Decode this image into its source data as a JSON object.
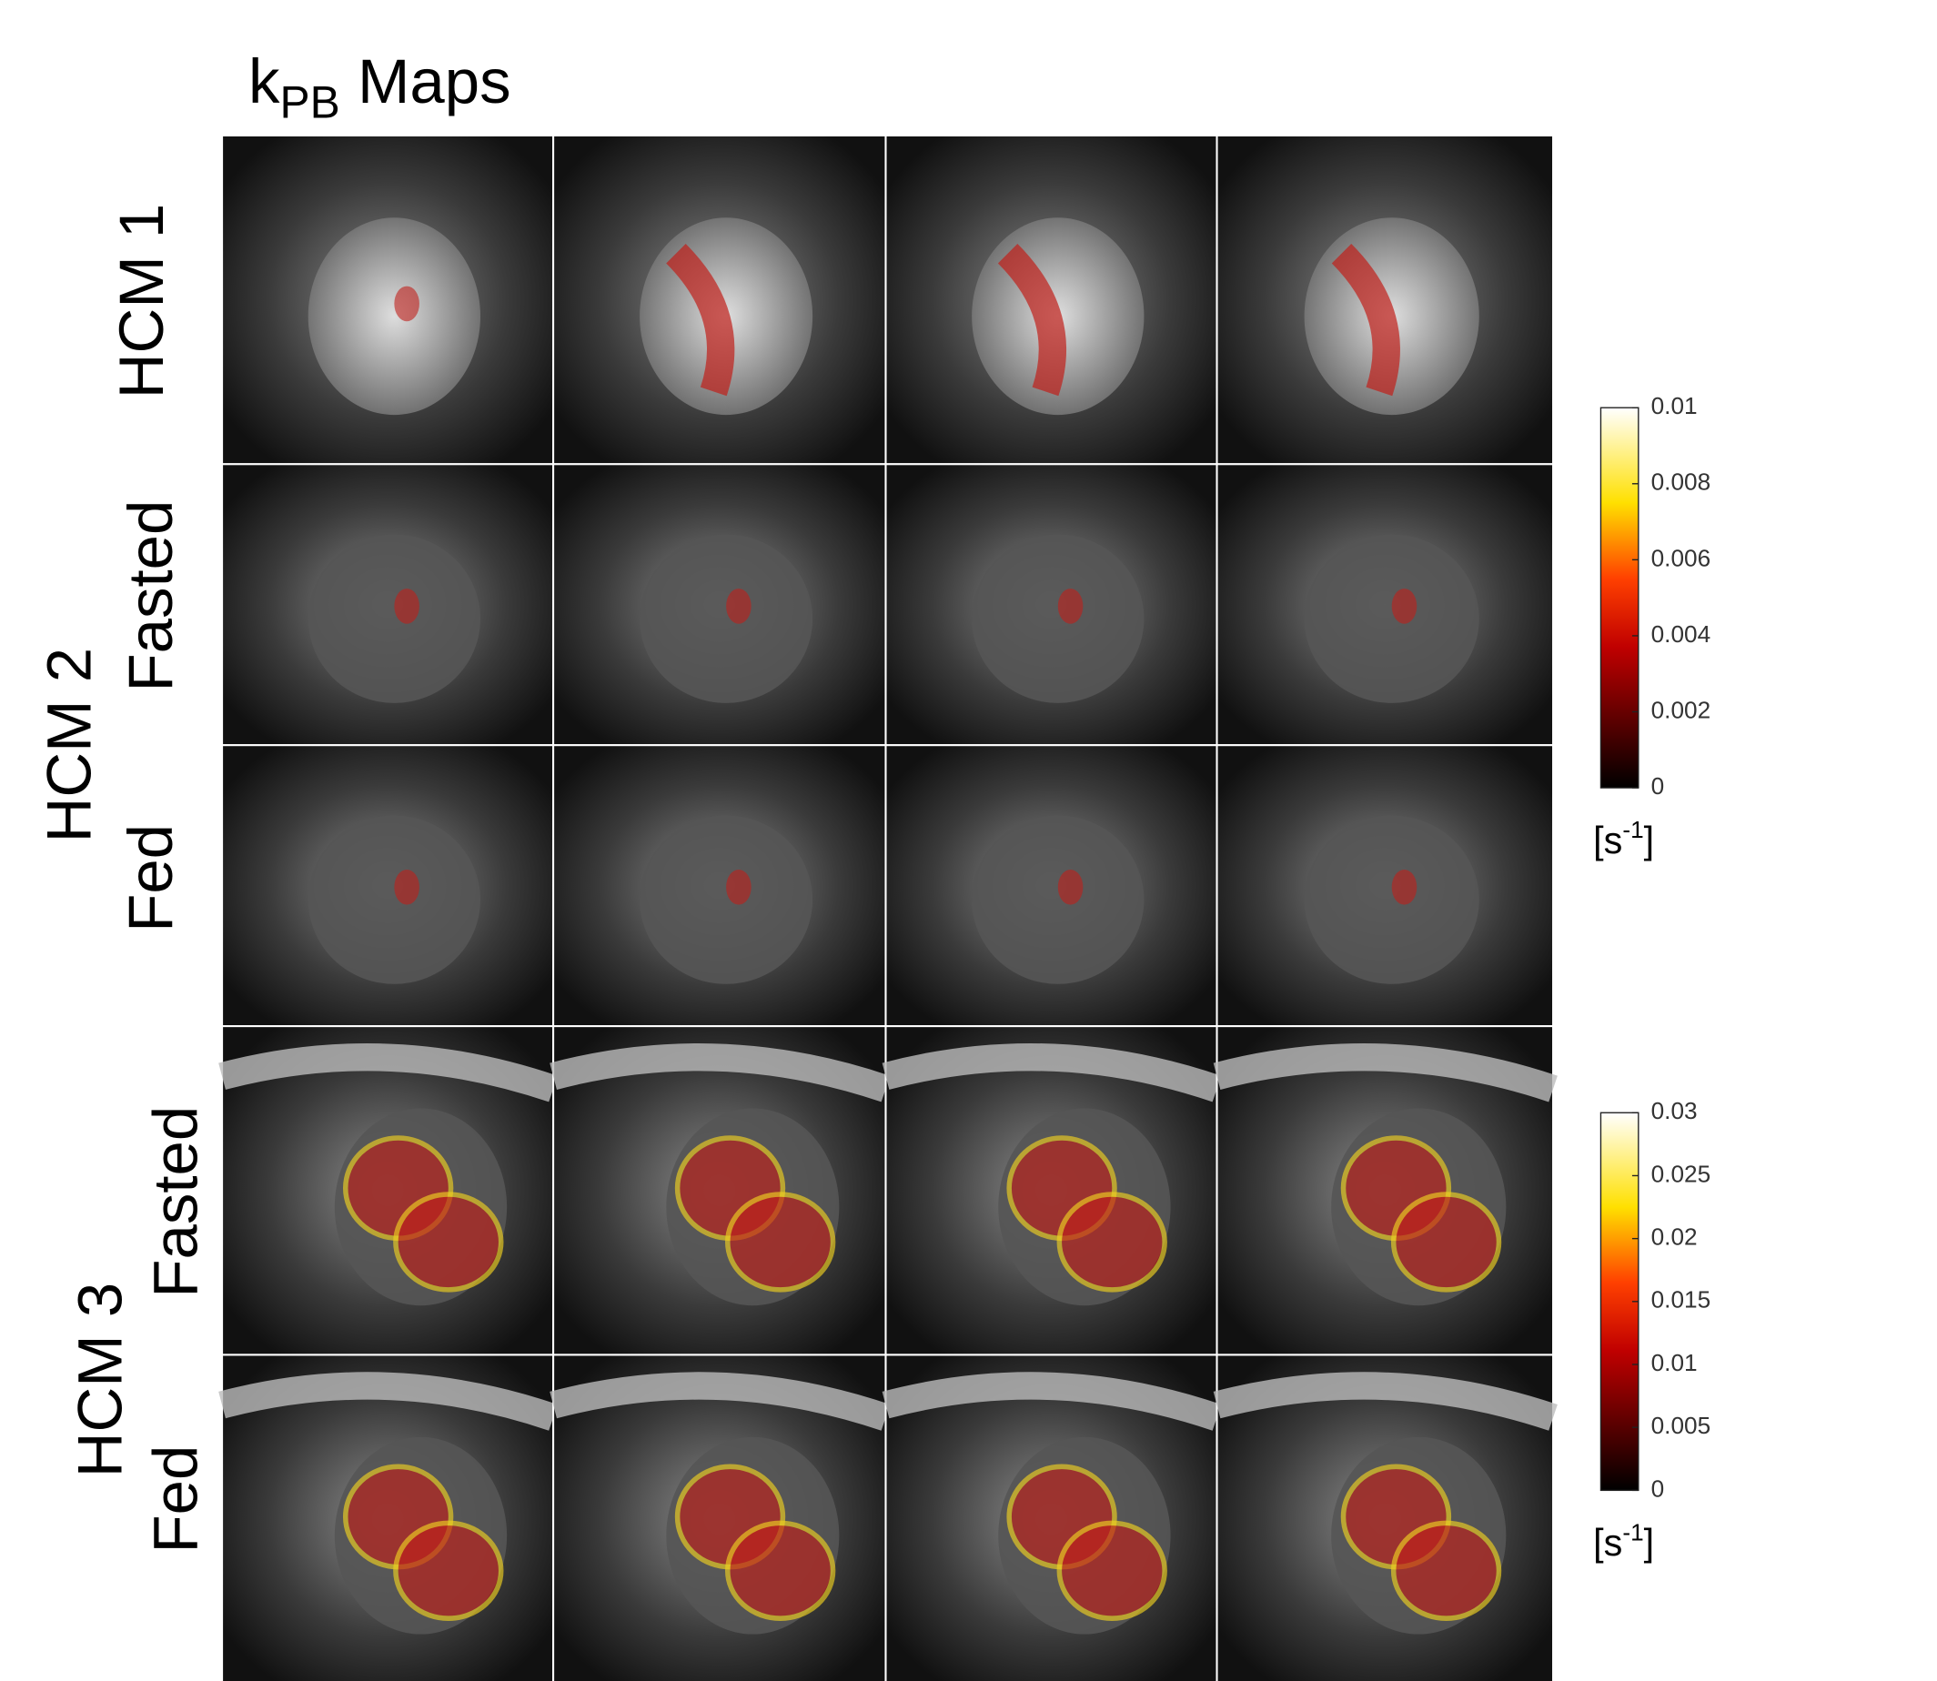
{
  "title": {
    "symbol": "k",
    "subscript": "PB",
    "text": "Maps"
  },
  "row_labels": [
    {
      "group": "HCM 1"
    },
    {
      "group": "HCM 2",
      "conditions": [
        "Fasted",
        "Fed"
      ]
    },
    {
      "group": "HCM 3",
      "conditions": [
        "Fasted",
        "Fed"
      ]
    }
  ],
  "colorbars": [
    {
      "lim": [
        0,
        0.01
      ],
      "ticks": [
        0,
        0.002,
        0.004,
        0.006,
        0.008,
        0.01
      ],
      "unit": {
        "open": "[s",
        "exponent": "-1",
        "close": "]"
      }
    },
    {
      "lim": [
        0,
        0.03
      ],
      "ticks": [
        0,
        0.005,
        0.01,
        0.015,
        0.02,
        0.025,
        0.03
      ],
      "unit": {
        "open": "[s",
        "exponent": "-1",
        "close": "]"
      }
    }
  ]
}
